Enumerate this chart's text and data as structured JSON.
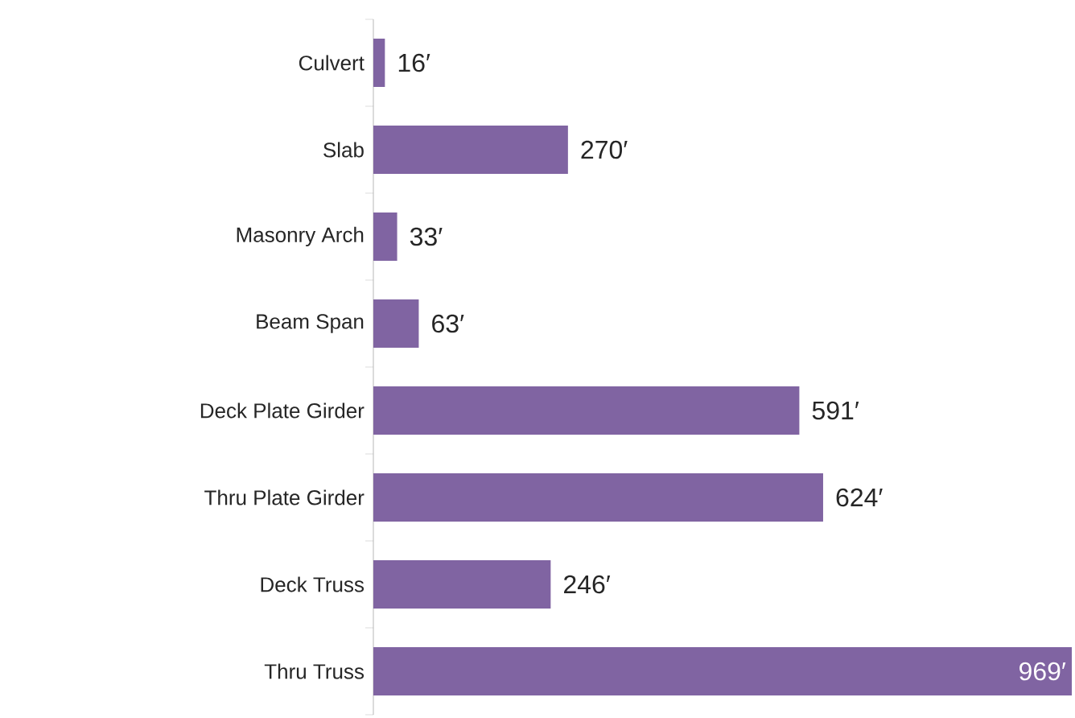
{
  "chart_data": {
    "type": "bar",
    "orientation": "horizontal",
    "categories": [
      "Culvert",
      "Slab",
      "Masonry Arch",
      "Beam Span",
      "Deck Plate Girder",
      "Thru Plate Girder",
      "Deck Truss",
      "Thru Truss"
    ],
    "values": [
      16,
      270,
      33,
      63,
      591,
      624,
      246,
      969
    ],
    "value_labels": [
      "16′",
      "270′",
      "33′",
      "63′",
      "591′",
      "624′",
      "246′",
      "969′"
    ],
    "color": "#8064a2"
  }
}
